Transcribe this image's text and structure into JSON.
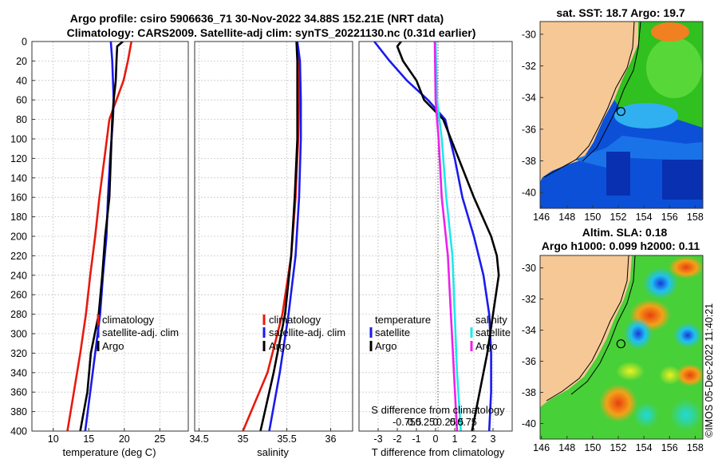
{
  "title_line1": "Argo profile: csiro 5906636_71 30-Nov-2022 34.88S 152.21E (NRT data)",
  "title_line2": "Climatology: CARS2009. Satellite-adj clim: synTS_20221130.nc (0.31d earlier)",
  "colors": {
    "climatology": "#e8190c",
    "satellite": "#1a1aee",
    "argo": "#000000",
    "sat_salinity": "#20e8e8",
    "argo_salinity": "#ee20ee",
    "land": "#f6c896"
  },
  "chart_data": [
    {
      "type": "line",
      "name": "temperature",
      "xlabel": "temperature (deg C)",
      "xlim": [
        7,
        29
      ],
      "ylim": [
        0,
        400
      ],
      "xticks": [
        10,
        15,
        20,
        25
      ],
      "yticks": [
        0,
        20,
        40,
        60,
        80,
        100,
        120,
        140,
        160,
        180,
        200,
        220,
        240,
        260,
        280,
        300,
        320,
        340,
        360,
        380,
        400
      ],
      "legend": [
        "climatology",
        "satellite-adj. clim",
        "Argo"
      ],
      "series": [
        {
          "name": "climatology",
          "color": "#e8190c",
          "depth": [
            0,
            20,
            40,
            60,
            80,
            120,
            160,
            200,
            240,
            280,
            320,
            360,
            400
          ],
          "values": [
            21.0,
            20.5,
            19.9,
            18.9,
            17.9,
            17.2,
            16.5,
            15.9,
            15.2,
            14.6,
            13.8,
            12.9,
            12.0
          ]
        },
        {
          "name": "satellite-adj. clim",
          "color": "#1a1aee",
          "depth": [
            0,
            20,
            40,
            60,
            80,
            120,
            160,
            200,
            240,
            280,
            320,
            360,
            400
          ],
          "values": [
            18.1,
            18.3,
            18.4,
            18.5,
            18.4,
            18.0,
            17.7,
            17.5,
            17.0,
            16.6,
            15.9,
            15.2,
            14.5
          ]
        },
        {
          "name": "Argo",
          "color": "#000000",
          "depth": [
            0,
            5,
            20,
            40,
            60,
            80,
            120,
            160,
            200,
            240,
            280,
            320,
            360,
            380,
            400
          ],
          "values": [
            19.8,
            19.0,
            18.9,
            18.8,
            18.5,
            18.3,
            18.1,
            17.9,
            17.3,
            16.9,
            16.4,
            15.3,
            14.8,
            14.3,
            13.8
          ]
        }
      ]
    },
    {
      "type": "line",
      "name": "salinity",
      "xlabel": "salinity",
      "xlim": [
        34.45,
        36.25
      ],
      "ylim": [
        0,
        400
      ],
      "xticks": [
        34.5,
        35,
        35.5,
        36
      ],
      "legend": [
        "climatology",
        "satellite-adj. clim",
        "Argo"
      ],
      "series": [
        {
          "name": "climatology",
          "color": "#e8190c",
          "depth": [
            0,
            20,
            60,
            100,
            160,
            220,
            280,
            340,
            400
          ],
          "values": [
            35.62,
            35.63,
            35.64,
            35.63,
            35.6,
            35.55,
            35.45,
            35.28,
            35.0
          ]
        },
        {
          "name": "satellite-adj. clim",
          "color": "#1a1aee",
          "depth": [
            0,
            20,
            60,
            100,
            160,
            220,
            280,
            340,
            400
          ],
          "values": [
            35.62,
            35.65,
            35.66,
            35.66,
            35.64,
            35.6,
            35.52,
            35.42,
            35.3
          ]
        },
        {
          "name": "Argo",
          "color": "#000000",
          "depth": [
            0,
            20,
            60,
            100,
            160,
            220,
            280,
            340,
            400
          ],
          "values": [
            35.61,
            35.62,
            35.62,
            35.62,
            35.59,
            35.55,
            35.48,
            35.35,
            35.2
          ]
        }
      ]
    },
    {
      "type": "line",
      "name": "difference_from_climatology",
      "xlabel": "T difference from climatology",
      "xlim": [
        -4,
        4
      ],
      "ylim": [
        0,
        400
      ],
      "xticks": [
        -3,
        -2,
        -1,
        0,
        1,
        2,
        3
      ],
      "top_axis_label": "S difference from climatology",
      "top_ticks": [
        "-0.75",
        "0.5",
        "0.25",
        "0",
        "0.25",
        "0.5",
        "0.75"
      ],
      "legend_temperature_header": "temperature",
      "legend_salinity_header": "salinity",
      "legend_temperature": [
        "satellite",
        "Argo"
      ],
      "legend_salinity": [
        "satellite",
        "Argo"
      ],
      "series": [
        {
          "name": "T satellite",
          "color": "#1a1aee",
          "depth": [
            0,
            20,
            40,
            60,
            80,
            120,
            160,
            200,
            240,
            280,
            320,
            360,
            400
          ],
          "values": [
            -3.2,
            -2.4,
            -1.5,
            -0.4,
            0.5,
            1.0,
            1.4,
            2.0,
            2.5,
            2.8,
            2.9,
            2.9,
            2.8
          ]
        },
        {
          "name": "T Argo",
          "color": "#000000",
          "depth": [
            0,
            5,
            20,
            40,
            60,
            80,
            120,
            160,
            200,
            220,
            240,
            280,
            320,
            360,
            380,
            400
          ],
          "values": [
            -1.8,
            -2.0,
            -1.7,
            -1.0,
            -0.6,
            0.4,
            1.2,
            2.0,
            2.9,
            3.2,
            3.3,
            3.0,
            2.7,
            2.3,
            2.1,
            1.9
          ]
        },
        {
          "name": "S satellite",
          "color": "#20e8e8",
          "depth": [
            0,
            60,
            100,
            160,
            220,
            280,
            340,
            400
          ],
          "values": [
            0.0,
            0.02,
            0.08,
            0.14,
            0.22,
            0.25,
            0.28,
            0.33
          ]
        },
        {
          "name": "S Argo",
          "color": "#ee20ee",
          "depth": [
            0,
            60,
            100,
            160,
            220,
            280,
            340,
            400
          ],
          "values": [
            -0.01,
            0.0,
            0.04,
            0.08,
            0.16,
            0.2,
            0.24,
            0.28
          ]
        }
      ]
    },
    {
      "type": "heatmap",
      "name": "sst_map",
      "title": "sat. SST: 18.7 Argo: 19.7",
      "xticks": [
        146,
        148,
        150,
        152,
        154,
        156,
        158
      ],
      "yticks": [
        -30,
        -32,
        -34,
        -36,
        -38,
        -40
      ],
      "xlim": [
        145.9,
        158.6
      ],
      "ylim": [
        -41,
        -29.2
      ],
      "marker": [
        152.21,
        -34.88
      ]
    },
    {
      "type": "heatmap",
      "name": "sla_map",
      "title_line1": "Altim. SLA: 0.18",
      "title_line2": "Argo h1000: 0.099 h2000: 0.11",
      "xticks": [
        146,
        148,
        150,
        152,
        154,
        156,
        158
      ],
      "yticks": [
        -30,
        -32,
        -34,
        -36,
        -38,
        -40
      ],
      "xlim": [
        145.9,
        158.6
      ],
      "ylim": [
        -41,
        -29.2
      ],
      "marker": [
        152.21,
        -34.88
      ]
    }
  ],
  "watermark": "©IMOS 05-Dec-2022 11:40:21"
}
